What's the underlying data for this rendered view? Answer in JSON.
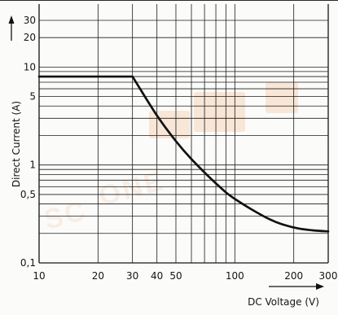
{
  "chart_data": {
    "type": "line",
    "title": "",
    "xlabel": "DC Voltage (V)",
    "ylabel": "Direct Current (A)",
    "x_scale": "log",
    "y_scale": "log",
    "xlim": [
      10,
      300
    ],
    "ylim": [
      0.1,
      30
    ],
    "grid": true,
    "x_ticks": [
      10,
      20,
      30,
      40,
      50,
      100,
      200,
      300
    ],
    "y_ticks": [
      0.1,
      0.5,
      1,
      5,
      10,
      20,
      30
    ],
    "x_tick_labels": [
      "10",
      "20",
      "30",
      "40",
      "50",
      "100",
      "200",
      "300"
    ],
    "y_tick_labels": [
      "0,1",
      "0,5",
      "1",
      "5",
      "10",
      "20",
      "30"
    ],
    "series": [
      {
        "x": [
          10,
          30,
          40,
          50,
          60,
          80,
          100,
          150,
          200,
          250,
          300
        ],
        "y": [
          8,
          8,
          3.2,
          1.75,
          1.15,
          0.65,
          0.45,
          0.28,
          0.23,
          0.215,
          0.21
        ]
      }
    ]
  }
}
